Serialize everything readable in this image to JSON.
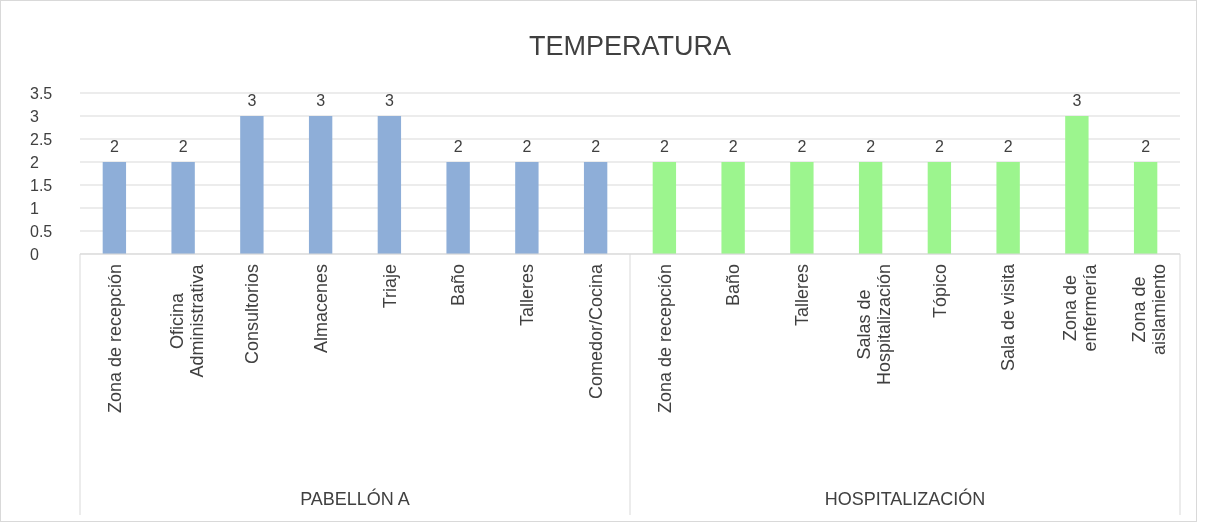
{
  "chart_data": {
    "type": "bar",
    "title": "TEMPERATURA",
    "categories": [
      "Zona de recepción",
      "Oficina Administrativa",
      "Consultorios",
      "Almacenes",
      "Triaje",
      "Baño",
      "Talleres",
      "Comedor/Cocina",
      "Zona de recepción",
      "Baño",
      "Talleres",
      "Salas de Hospitalización",
      "Tópico",
      "Sala de visita",
      "Zona de enfermería",
      "Zona de aislamiento"
    ],
    "values": [
      2,
      2,
      3,
      3,
      3,
      2,
      2,
      2,
      2,
      2,
      2,
      2,
      2,
      2,
      3,
      2
    ],
    "colors": [
      "#8eaed8",
      "#8eaed8",
      "#8eaed8",
      "#8eaed8",
      "#8eaed8",
      "#8eaed8",
      "#8eaed8",
      "#8eaed8",
      "#9cf58e",
      "#9cf58e",
      "#9cf58e",
      "#9cf58e",
      "#9cf58e",
      "#9cf58e",
      "#9cf58e",
      "#9cf58e"
    ],
    "annotations": [
      "PABELLÓN A",
      "HOSPITALIZACIÓN"
    ],
    "ylim": [
      0,
      3.5
    ],
    "yticks": [
      0,
      0.5,
      1,
      1.5,
      2,
      2.5,
      3,
      3.5
    ],
    "grid": "y",
    "data_labels": true
  }
}
